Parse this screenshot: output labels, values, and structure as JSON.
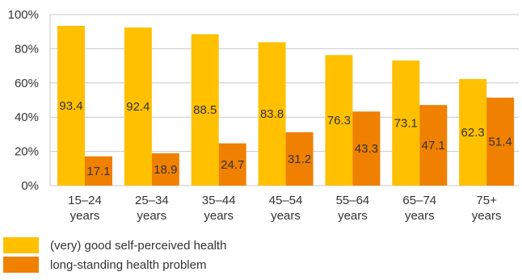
{
  "chart_data": {
    "type": "bar",
    "categories": [
      [
        "15–24",
        "years"
      ],
      [
        "25–34",
        "years"
      ],
      [
        "35–44",
        "years"
      ],
      [
        "45–54",
        "years"
      ],
      [
        "55–64",
        "years"
      ],
      [
        "65–74",
        "years"
      ],
      [
        "75+",
        "years"
      ]
    ],
    "series": [
      {
        "name": "(very) good self-perceived health",
        "color": "#FFC000",
        "values": [
          93.4,
          92.4,
          88.5,
          83.8,
          76.3,
          73.1,
          62.3
        ]
      },
      {
        "name": "long-standing health problem",
        "color": "#F08000",
        "values": [
          17.1,
          18.9,
          24.7,
          31.2,
          43.3,
          47.1,
          51.4
        ]
      }
    ],
    "ylim": [
      0,
      100
    ],
    "yticks": [
      "0%",
      "20%",
      "40%",
      "60%",
      "80%",
      "100%"
    ],
    "ytick_values": [
      0,
      20,
      40,
      60,
      80,
      100
    ],
    "grid": true,
    "legend_position": "bottom-left",
    "gridline_color": "#C8C8C8"
  }
}
